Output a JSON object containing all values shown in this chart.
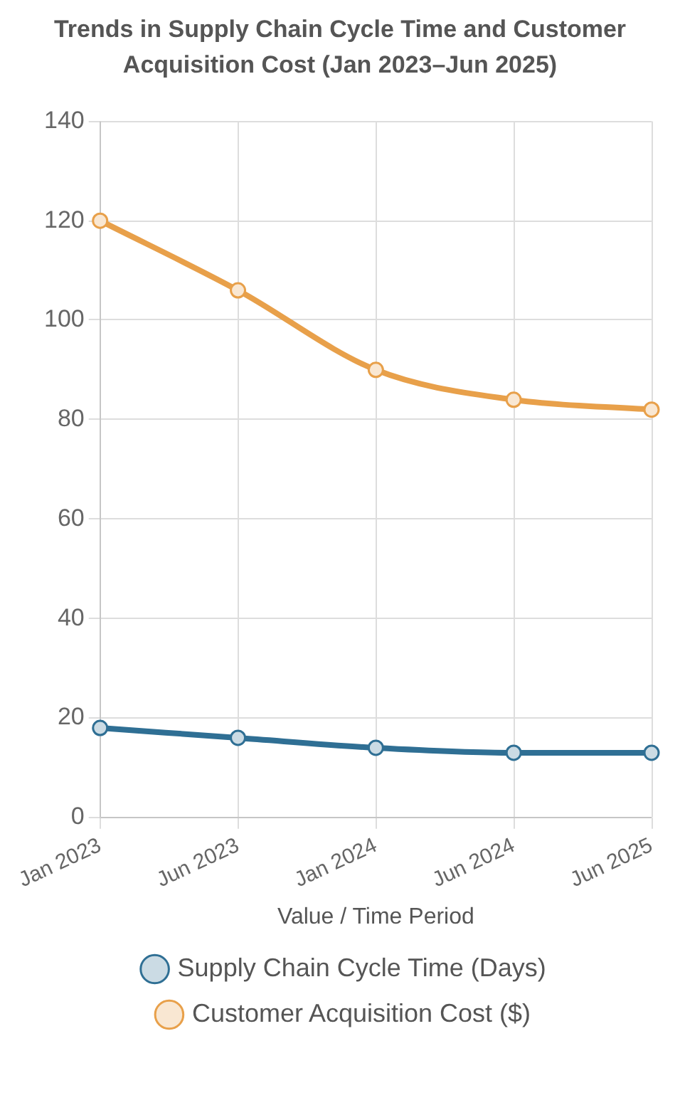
{
  "chart_data": {
    "type": "line",
    "title": "Trends in Supply Chain Cycle Time and Customer Acquisition Cost (Jan 2023–Jun 2025)",
    "xlabel": "Value / Time Period",
    "categories": [
      "Jan 2023",
      "Jun 2023",
      "Jan 2024",
      "Jun 2024",
      "Jun 2025"
    ],
    "series": [
      {
        "name": "Supply Chain Cycle Time (Days)",
        "color": "#2f6f94",
        "values": [
          18,
          16,
          14,
          13,
          13
        ]
      },
      {
        "name": "Customer Acquisition Cost ($)",
        "color": "#e8a04a",
        "values": [
          120,
          106,
          90,
          84,
          82
        ]
      }
    ],
    "ylim": [
      0,
      140
    ],
    "yticks": [
      0,
      20,
      40,
      60,
      80,
      100,
      120,
      140
    ],
    "grid": true,
    "legend": "bottom",
    "marker": "circle"
  }
}
